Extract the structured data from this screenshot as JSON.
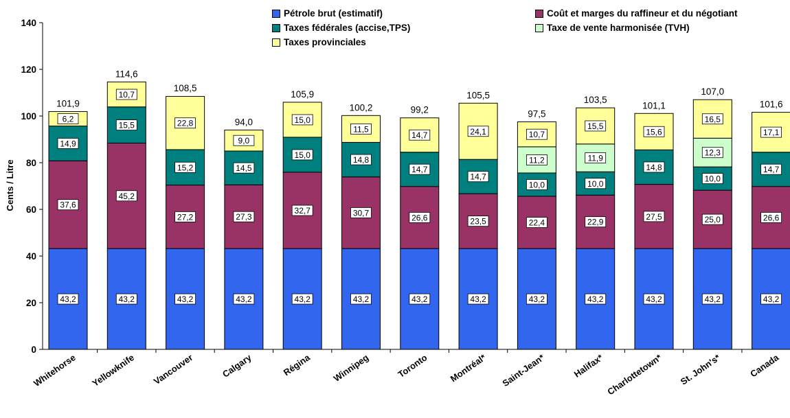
{
  "chart_data": {
    "type": "bar",
    "stacked": true,
    "ylabel": "Cents / Litre",
    "ylim": [
      0,
      140
    ],
    "yticks": [
      0,
      20,
      40,
      60,
      80,
      100,
      120,
      140
    ],
    "grid": false,
    "legend_position": "top",
    "categories": [
      "Whitehorse",
      "Yellowknife",
      "Vancouver",
      "Calgary",
      "Régina",
      "Winnipeg",
      "Toronto",
      "Montréal*",
      "Saint-Jean*",
      "Halifax*",
      "Charlottetown*",
      "St. John's*",
      "Canada"
    ],
    "category_labels": [
      "Whitehorse",
      "Yellowknife",
      "Vancouver",
      "Calgary",
      "Régina",
      "Winnipeg",
      "Toronto",
      "Montréal*",
      "Saint-Jean*",
      "Halifax*",
      "Charlottetown*",
      "St. John's*",
      "Canada"
    ],
    "series": [
      {
        "name": "Pétrole brut (estimatif)",
        "color": "#3366ee",
        "values": [
          43.2,
          43.2,
          43.2,
          43.2,
          43.2,
          43.2,
          43.2,
          43.2,
          43.2,
          43.2,
          43.2,
          43.2,
          43.2
        ],
        "labels": [
          "43,2",
          "43,2",
          "43,2",
          "43,2",
          "43,2",
          "43,2",
          "43,2",
          "43,2",
          "43,2",
          "43,2",
          "43,2",
          "43,2",
          "43,2"
        ]
      },
      {
        "name": "Coût et marges du raffineur et du négotiant",
        "color": "#993366",
        "values": [
          37.6,
          45.2,
          27.2,
          27.3,
          32.7,
          30.7,
          26.6,
          23.5,
          22.4,
          22.9,
          27.5,
          25.0,
          26.6
        ],
        "labels": [
          "37,6",
          "45,2",
          "27,2",
          "27,3",
          "32,7",
          "30,7",
          "26,6",
          "23,5",
          "22,4",
          "22,9",
          "27,5",
          "25,0",
          "26,6"
        ]
      },
      {
        "name": "Taxes fédérales (accise,TPS)",
        "color": "#007f7f",
        "values": [
          14.9,
          15.5,
          15.2,
          14.5,
          15.0,
          14.8,
          14.7,
          14.7,
          10.0,
          10.0,
          14.8,
          10.0,
          14.7
        ],
        "labels": [
          "14,9",
          "15,5",
          "15,2",
          "14,5",
          "15,0",
          "14,8",
          "14,7",
          "14,7",
          "10,0",
          "10,0",
          "14,8",
          "10,0",
          "14,7"
        ]
      },
      {
        "name": "Taxe de vente harmonisée (TVH)",
        "color": "#ccffcc",
        "values": [
          0,
          0,
          0,
          0,
          0,
          0,
          0,
          0,
          11.2,
          11.9,
          0,
          12.3,
          0
        ],
        "labels": [
          "",
          "",
          "",
          "",
          "",
          "",
          "",
          "",
          "11,2",
          "11,9",
          "",
          "12,3",
          ""
        ]
      },
      {
        "name": "Taxes provinciales",
        "color": "#ffff99",
        "values": [
          6.2,
          10.7,
          22.8,
          9.0,
          15.0,
          11.5,
          14.7,
          24.1,
          10.7,
          15.5,
          15.6,
          16.5,
          17.1
        ],
        "labels": [
          "6,2",
          "10,7",
          "22,8",
          "9,0",
          "15,0",
          "11,5",
          "14,7",
          "24,1",
          "10,7",
          "15,5",
          "15,6",
          "16,5",
          "17,1"
        ]
      }
    ],
    "totals": [
      101.9,
      114.6,
      108.5,
      94.0,
      105.9,
      100.2,
      99.2,
      105.5,
      97.5,
      103.5,
      101.1,
      107.0,
      101.6
    ],
    "total_labels": [
      "101,9",
      "114,6",
      "108,5",
      "94,0",
      "105,9",
      "100,2",
      "99,2",
      "105,5",
      "97,5",
      "103,5",
      "101,1",
      "107,0",
      "101,6"
    ]
  }
}
